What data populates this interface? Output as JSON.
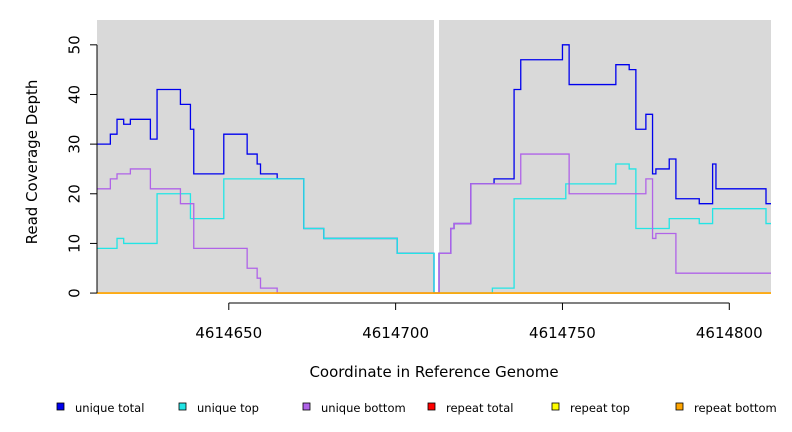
{
  "chart_data": {
    "type": "line",
    "xlabel": "Coordinate in Reference Genome",
    "ylabel": "Read Coverage Depth",
    "xlim": [
      4614610.5,
      4614812.5
    ],
    "ylim": [
      -2,
      55
    ],
    "x_ticks": [
      4614650,
      4614700,
      4614750,
      4614800
    ],
    "x_tick_labels": [
      "4614650",
      "4614700",
      "4614750",
      "4614800"
    ],
    "y_ticks": [
      0,
      10,
      20,
      30,
      40,
      50
    ],
    "y_tick_labels": [
      "0",
      "10",
      "20",
      "30",
      "40",
      "50"
    ],
    "background_color": "#d9d9d9",
    "gap_x": [
      4614711.5,
      4614713.0
    ],
    "legend_position": "bottom",
    "series": [
      {
        "name": "unique total",
        "color": "#0000ee",
        "steps": [
          [
            4614610.5,
            30
          ],
          [
            4614614.5,
            32
          ],
          [
            4614616.5,
            35
          ],
          [
            4614618.5,
            34
          ],
          [
            4614620.5,
            35
          ],
          [
            4614626.5,
            31
          ],
          [
            4614628.5,
            41
          ],
          [
            4614635.5,
            38
          ],
          [
            4614638.5,
            33
          ],
          [
            4614639.5,
            24
          ],
          [
            4614648.5,
            32
          ],
          [
            4614655.5,
            28
          ],
          [
            4614658.5,
            26
          ],
          [
            4614659.5,
            24
          ],
          [
            4614664.5,
            23
          ],
          [
            4614672.5,
            13
          ],
          [
            4614678.5,
            11
          ],
          [
            4614700.5,
            8
          ],
          [
            4614711.5,
            0
          ],
          [
            4614713,
            8
          ],
          [
            4614716.5,
            13
          ],
          [
            4614717.5,
            14
          ],
          [
            4614722.5,
            22
          ],
          [
            4614729.5,
            23
          ],
          [
            4614735.5,
            41
          ],
          [
            4614737.5,
            47
          ],
          [
            4614750,
            50
          ],
          [
            4614752,
            42
          ],
          [
            4614766,
            46
          ],
          [
            4614770,
            45
          ],
          [
            4614772,
            33
          ],
          [
            4614775,
            36
          ],
          [
            4614777,
            24
          ],
          [
            4614778,
            25
          ],
          [
            4614782,
            27
          ],
          [
            4614784,
            19
          ],
          [
            4614791,
            18
          ],
          [
            4614795,
            26
          ],
          [
            4614796,
            21
          ],
          [
            4614811,
            18
          ]
        ],
        "x_end": 4614812.5
      },
      {
        "name": "unique top",
        "color": "#22e5e5",
        "steps": [
          [
            4614610.5,
            9
          ],
          [
            4614616.5,
            11
          ],
          [
            4614618.5,
            10
          ],
          [
            4614628.5,
            20
          ],
          [
            4614638.5,
            15
          ],
          [
            4614648.5,
            23
          ],
          [
            4614672.5,
            13
          ],
          [
            4614678.5,
            11
          ],
          [
            4614700.5,
            8
          ],
          [
            4614711.5,
            0
          ],
          [
            4614729,
            1
          ],
          [
            4614735.5,
            19
          ],
          [
            4614751,
            22
          ],
          [
            4614766,
            26
          ],
          [
            4614770,
            25
          ],
          [
            4614772,
            13
          ],
          [
            4614782,
            15
          ],
          [
            4614791,
            14
          ],
          [
            4614795,
            17
          ],
          [
            4614811,
            14
          ]
        ],
        "x_end": 4614812.5
      },
      {
        "name": "unique bottom",
        "color": "#b063e8",
        "steps": [
          [
            4614610.5,
            21
          ],
          [
            4614614.5,
            23
          ],
          [
            4614616.5,
            24
          ],
          [
            4614620.5,
            25
          ],
          [
            4614626.5,
            21
          ],
          [
            4614635.5,
            18
          ],
          [
            4614639.5,
            9
          ],
          [
            4614655.5,
            5
          ],
          [
            4614658.5,
            3
          ],
          [
            4614659.5,
            1
          ],
          [
            4614664.5,
            0
          ],
          [
            4614711.5,
            0
          ],
          [
            4614713,
            8
          ],
          [
            4614716.5,
            13
          ],
          [
            4614717.5,
            14
          ],
          [
            4614722.5,
            22
          ],
          [
            4614737.5,
            28
          ],
          [
            4614752,
            20
          ],
          [
            4614775,
            23
          ],
          [
            4614777,
            11
          ],
          [
            4614778,
            12
          ],
          [
            4614784,
            4
          ]
        ],
        "x_end": 4614812.5
      },
      {
        "name": "repeat total",
        "color": "#ff0000",
        "steps": [
          [
            4614610.5,
            0
          ]
        ],
        "x_end": 4614812.5
      },
      {
        "name": "repeat top",
        "color": "#ffff00",
        "steps": [
          [
            4614610.5,
            0
          ]
        ],
        "x_end": 4614812.5
      },
      {
        "name": "repeat bottom",
        "color": "#ffa500",
        "steps": [
          [
            4614610.5,
            0
          ]
        ],
        "x_end": 4614812.5
      }
    ]
  }
}
